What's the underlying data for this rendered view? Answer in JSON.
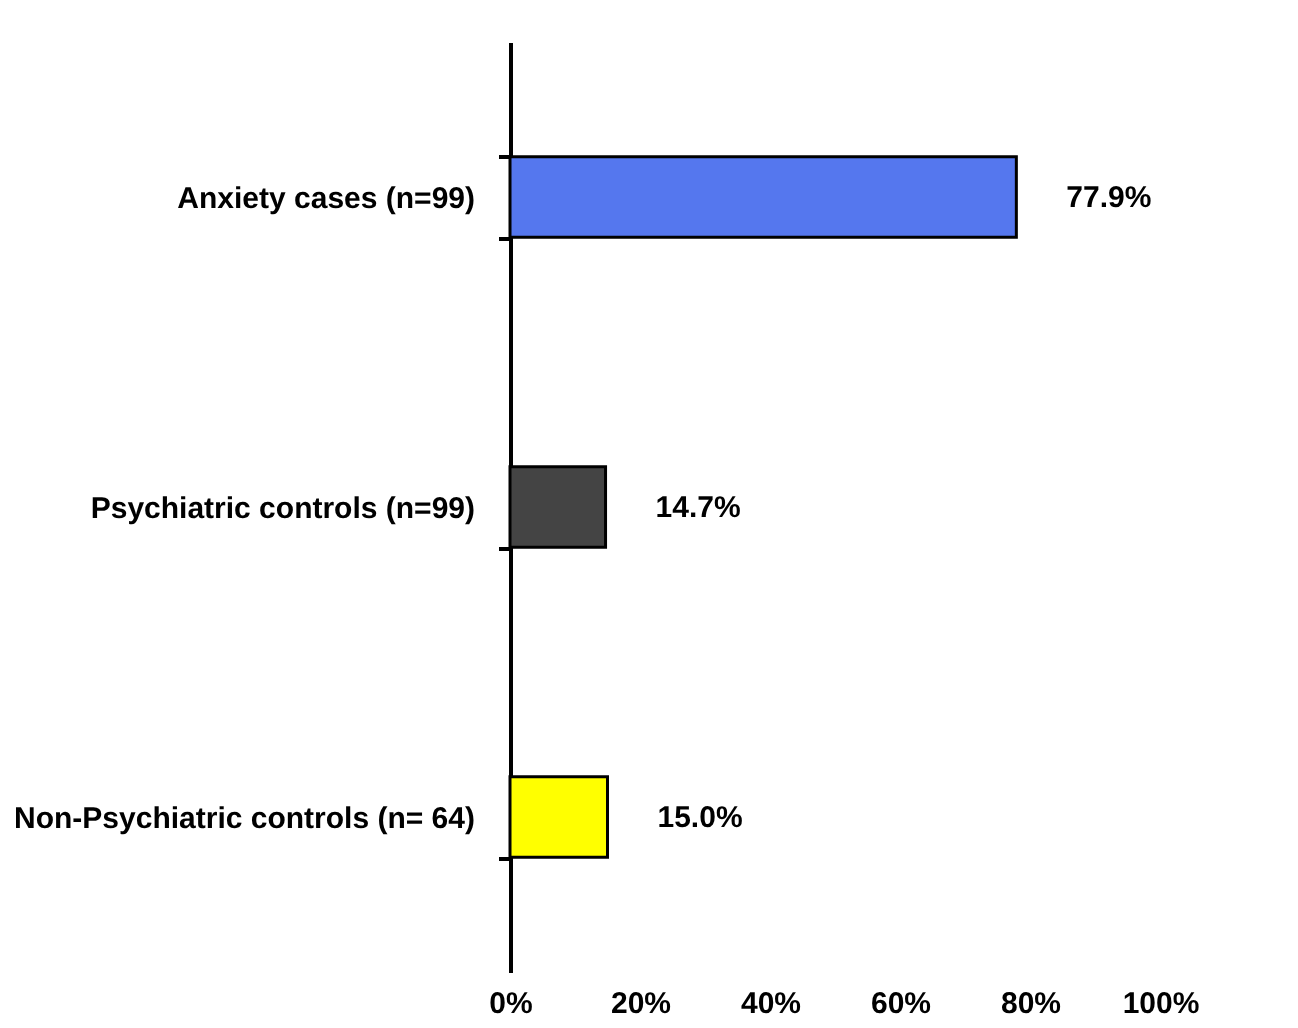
{
  "chart_data": {
    "type": "bar",
    "orientation": "horizontal",
    "categories": [
      "Anxiety cases (n=99)",
      "Psychiatric controls (n=99)",
      "Non-Psychiatric controls (n= 64)"
    ],
    "values": [
      77.9,
      14.7,
      15.0
    ],
    "colors": [
      "#5577ee",
      "#444444",
      "#ffff00"
    ],
    "value_labels": [
      "77.9%",
      "14.7%",
      "15.0%"
    ],
    "xlim": [
      0,
      100
    ],
    "xticks": [
      {
        "value": 0,
        "label": "0%"
      },
      {
        "value": 20,
        "label": "20%"
      },
      {
        "value": 40,
        "label": "40%"
      },
      {
        "value": 60,
        "label": "60%"
      },
      {
        "value": 80,
        "label": "80%"
      },
      {
        "value": 100,
        "label": "100%"
      }
    ],
    "grid": false,
    "legend": false
  }
}
